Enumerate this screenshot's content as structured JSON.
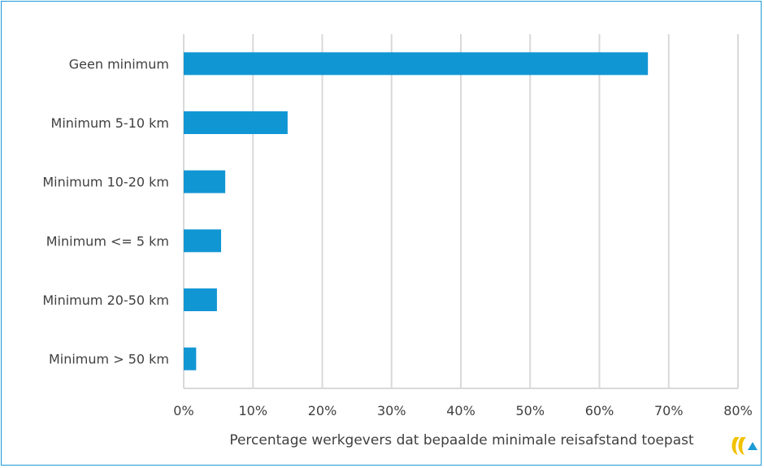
{
  "colors": {
    "bar": "#1196d4",
    "grid": "#d9d9d9",
    "frame": "#1a9ad6",
    "logo_yellow": "#f2c200",
    "logo_blue": "#1a9ad6"
  },
  "logo": {
    "icon": "company-logo-icon"
  },
  "chart_data": {
    "type": "bar",
    "orientation": "horizontal",
    "categories": [
      "Geen minimum",
      "Minimum 5-10 km",
      "Minimum 10-20 km",
      "Minimum <= 5 km",
      "Minimum 20-50 km",
      "Minimum > 50 km"
    ],
    "values": [
      67,
      15,
      6,
      5.4,
      4.8,
      1.8
    ],
    "xlabel": "Percentage werkgevers dat bepaalde minimale reisafstand toepast",
    "xlim": [
      0,
      80
    ],
    "xticks": [
      0,
      10,
      20,
      30,
      40,
      50,
      60,
      70,
      80
    ],
    "xtick_labels": [
      "0%",
      "10%",
      "20%",
      "30%",
      "40%",
      "50%",
      "60%",
      "70%",
      "80%"
    ],
    "grid": true,
    "legend": "none"
  }
}
